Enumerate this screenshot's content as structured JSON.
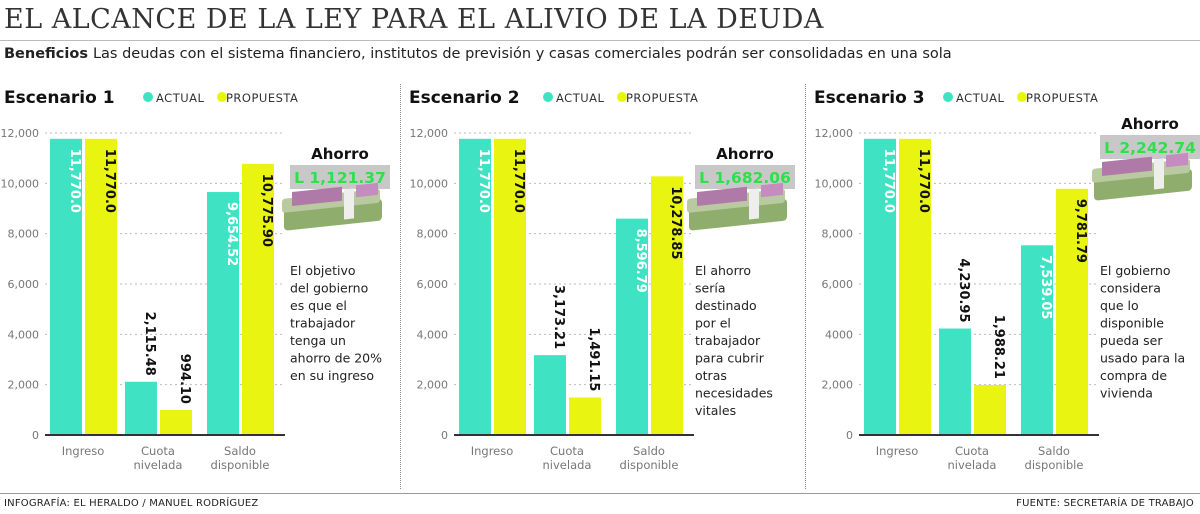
{
  "header": {
    "title": "EL ALCANCE DE LA LEY PARA EL ALIVIO DE LA DEUDA",
    "subtitle_bold": "Beneficios",
    "subtitle": "Las deudas con el sistema financiero, institutos de previsión y casas comerciales podrán ser consolidadas en una sola"
  },
  "colors": {
    "actual": "#3fe3c4",
    "propuesta": "#e9f511",
    "ahorro_text": "#2ee04a",
    "ahorro_box": "#c8c8c8"
  },
  "chart_data": [
    {
      "type": "bar",
      "title": "Escenario 1",
      "categories": [
        "Ingreso",
        "Cuota nivelada",
        "Saldo disponible"
      ],
      "series": [
        {
          "name": "ACTUAL",
          "values": [
            11770.0,
            2115.48,
            9654.52
          ],
          "labels": [
            "11,770.0",
            "2,115.48",
            "9,654.52"
          ]
        },
        {
          "name": "PROPUESTA",
          "values": [
            11770.0,
            994.1,
            10775.9
          ],
          "labels": [
            "11,770.0",
            "994.10",
            "10,775.90"
          ]
        }
      ],
      "yticks": [
        "0",
        "2,000",
        "4,000",
        "6,000",
        "8,000",
        "10,000",
        "12,000"
      ],
      "ylim": [
        0,
        12000
      ],
      "grid": true,
      "legend": "top",
      "ahorro_label": "Ahorro",
      "ahorro_value": "L 1,121.37",
      "note": [
        "El objetivo",
        "del gobierno",
        "es que el",
        "trabajador",
        "tenga un",
        "ahorro de 20%",
        "en su ingreso"
      ]
    },
    {
      "type": "bar",
      "title": "Escenario 2",
      "categories": [
        "Ingreso",
        "Cuota nivelada",
        "Saldo disponible"
      ],
      "series": [
        {
          "name": "ACTUAL",
          "values": [
            11770.0,
            3173.21,
            8596.79
          ],
          "labels": [
            "11,770.0",
            "3,173.21",
            "8,596.79"
          ]
        },
        {
          "name": "PROPUESTA",
          "values": [
            11770.0,
            1491.15,
            10278.85
          ],
          "labels": [
            "11,770.0",
            "1,491.15",
            "10,278.85"
          ]
        }
      ],
      "yticks": [
        "0",
        "2,000",
        "4,000",
        "6,000",
        "8,000",
        "10,000",
        "12,000"
      ],
      "ylim": [
        0,
        12000
      ],
      "grid": true,
      "legend": "top",
      "ahorro_label": "Ahorro",
      "ahorro_value": "L 1,682.06",
      "note": [
        "El ahorro",
        "sería",
        "destinado",
        "por el",
        "trabajador",
        "para cubrir",
        "otras",
        "necesidades",
        "vitales"
      ]
    },
    {
      "type": "bar",
      "title": "Escenario 3",
      "categories": [
        "Ingreso",
        "Cuota nivelada",
        "Saldo disponible"
      ],
      "series": [
        {
          "name": "ACTUAL",
          "values": [
            11770.0,
            4230.95,
            7539.05
          ],
          "labels": [
            "11,770.0",
            "4,230.95",
            "7,539.05"
          ]
        },
        {
          "name": "PROPUESTA",
          "values": [
            11770.0,
            1988.21,
            9781.79
          ],
          "labels": [
            "11,770.0",
            "1,988.21",
            "9,781.79"
          ]
        }
      ],
      "yticks": [
        "0",
        "2,000",
        "4000",
        "6,000",
        "8,000",
        "10,000",
        "12,000"
      ],
      "ylim": [
        0,
        12000
      ],
      "grid": true,
      "legend": "top",
      "ahorro_label": "Ahorro",
      "ahorro_value": "L 2,242.74",
      "note": [
        "El gobierno",
        "considera",
        "que lo",
        "disponible",
        "pueda ser",
        "usado para la",
        "compra de",
        "vivienda"
      ]
    }
  ],
  "footer": {
    "credit": "INFOGRAFÍA: EL HERALDO / MANUEL RODRÍGUEZ",
    "source": "FUENTE: SECRETARÍA DE TRABAJO"
  }
}
